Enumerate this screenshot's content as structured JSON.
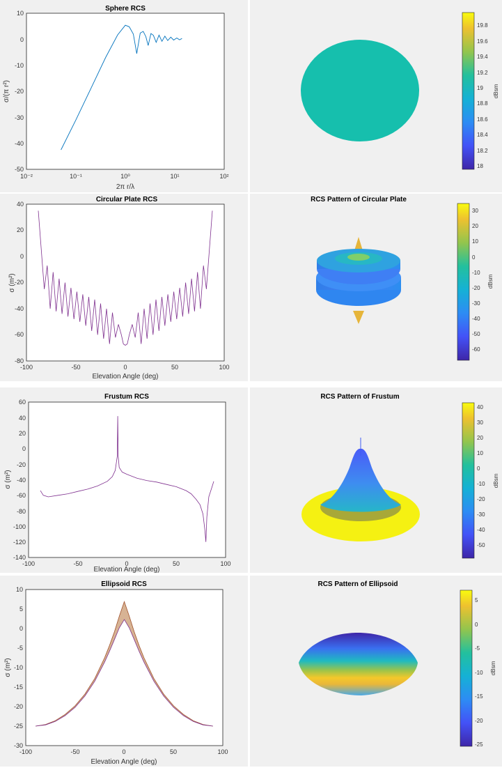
{
  "colors": {
    "background": "#f0f0f0",
    "plot_bg": "#ffffff",
    "blue_line": "#0072bd",
    "purple_line": "#7e2f8e",
    "parula_dark": "#3e26a8",
    "parula_yellow": "#f9fb0e",
    "sphere_fill": "#16bfad"
  },
  "charts": {
    "sphere_rcs": {
      "title": "Sphere RCS",
      "xlabel": "2π r/λ",
      "ylabel": "σ/(π r²)",
      "xticks": [
        "10⁻²",
        "10⁻¹",
        "10⁰",
        "10¹",
        "10²"
      ],
      "yticks": [
        "10",
        "0",
        "-10",
        "-20",
        "-30",
        "-40",
        "-50"
      ]
    },
    "sphere_pattern": {
      "title": "",
      "colorbar_label": "dBsm",
      "colorbar_ticks": [
        "19.8",
        "19.6",
        "19.4",
        "19.2",
        "19",
        "18.8",
        "18.6",
        "18.4",
        "18.2",
        "18"
      ]
    },
    "plate_rcs": {
      "title": "Circular Plate RCS",
      "xlabel": "Elevation Angle (deg)",
      "ylabel": "σ (m²)",
      "xticks": [
        "-100",
        "-50",
        "0",
        "50",
        "100"
      ],
      "yticks": [
        "40",
        "20",
        "0",
        "-20",
        "-40",
        "-60",
        "-80"
      ]
    },
    "plate_pattern": {
      "title": "RCS Pattern of Circular Plate",
      "colorbar_label": "dBsm",
      "colorbar_ticks": [
        "30",
        "20",
        "10",
        "0",
        "-10",
        "-20",
        "-30",
        "-40",
        "-50",
        "-60"
      ]
    },
    "frustum_rcs": {
      "title": "Frustum RCS",
      "xlabel": "Elevation Angle (deg)",
      "ylabel": "σ (m²)",
      "xticks": [
        "-100",
        "-50",
        "0",
        "50",
        "100"
      ],
      "yticks": [
        "60",
        "40",
        "20",
        "0",
        "-20",
        "-40",
        "-60",
        "-80",
        "-100",
        "-120",
        "-140"
      ]
    },
    "frustum_pattern": {
      "title": "RCS Pattern of Frustum",
      "colorbar_label": "dBsm",
      "colorbar_ticks": [
        "40",
        "30",
        "20",
        "10",
        "0",
        "-10",
        "-20",
        "-30",
        "-40",
        "-50"
      ]
    },
    "ellipsoid_rcs": {
      "title": "Ellipsoid RCS",
      "xlabel": "Elevation Angle (deg)",
      "ylabel": "σ (m²)",
      "xticks": [
        "-100",
        "-50",
        "0",
        "50",
        "100"
      ],
      "yticks": [
        "10",
        "5",
        "0",
        "-5",
        "-10",
        "-15",
        "-20",
        "-25",
        "-30"
      ]
    },
    "ellipsoid_pattern": {
      "title": "RCS Pattern of Ellipsoid",
      "colorbar_label": "dBsm",
      "colorbar_ticks": [
        "5",
        "0",
        "-5",
        "-10",
        "-15",
        "-20",
        "-25"
      ]
    }
  },
  "chart_data": [
    {
      "type": "line",
      "title": "Sphere RCS",
      "xlabel": "2π r/λ",
      "ylabel": "σ/(π r²)",
      "x_scale": "log",
      "xlim": [
        0.01,
        100
      ],
      "ylim": [
        -50,
        10
      ],
      "grid": false,
      "series": [
        {
          "x": [
            0.05,
            0.1,
            0.2,
            0.4,
            0.7,
            1.0,
            1.2,
            1.45,
            1.7,
            2.0,
            2.3,
            2.6,
            2.9,
            3.3,
            3.7,
            4.2,
            4.8,
            5.5,
            6.3,
            7.2,
            8.3,
            9.5,
            11,
            12.5,
            14
          ],
          "y": [
            -42.5,
            -31,
            -19,
            -7,
            1.7,
            5.4,
            4.8,
            2.0,
            -5.5,
            2.4,
            3.0,
            1.0,
            -2.4,
            2.2,
            1.5,
            -1.2,
            1.6,
            -0.8,
            1.2,
            -0.5,
            0.8,
            -0.3,
            0.5,
            -0.2,
            0.3
          ]
        }
      ]
    },
    {
      "type": "line",
      "title": "Circular Plate RCS",
      "xlabel": "Elevation Angle (deg)",
      "ylabel": "σ (m²)",
      "xlim": [
        -100,
        100
      ],
      "ylim": [
        -80,
        40
      ],
      "grid": false,
      "series": [
        {
          "x": [
            -88,
            -85,
            -82,
            -79,
            -76,
            -73,
            -70,
            -67,
            -64,
            -61,
            -58,
            -55,
            -52,
            -49,
            -46,
            -43,
            -40,
            -37,
            -34,
            -31,
            -28,
            -25,
            -22,
            -19,
            -16,
            -13,
            -10,
            -7,
            -4,
            -2,
            0,
            2,
            4,
            7,
            10,
            13,
            16,
            19,
            22,
            25,
            28,
            31,
            34,
            37,
            40,
            43,
            46,
            49,
            52,
            55,
            58,
            61,
            64,
            67,
            70,
            73,
            76,
            79,
            82,
            85,
            88
          ],
          "y": [
            35,
            5,
            -25,
            -7,
            -40,
            -12,
            -42,
            -17,
            -44,
            -20,
            -46,
            -24,
            -48,
            -27,
            -50,
            -29,
            -53,
            -31,
            -57,
            -33,
            -60,
            -36,
            -63,
            -40,
            -67,
            -43,
            -62,
            -52,
            -60,
            -67,
            -68,
            -67,
            -60,
            -52,
            -62,
            -43,
            -67,
            -40,
            -63,
            -36,
            -60,
            -33,
            -57,
            -31,
            -53,
            -29,
            -50,
            -27,
            -48,
            -24,
            -46,
            -20,
            -44,
            -17,
            -42,
            -12,
            -40,
            -7,
            -25,
            5,
            35
          ]
        }
      ]
    },
    {
      "type": "line",
      "title": "Frustum RCS",
      "xlabel": "Elevation Angle (deg)",
      "ylabel": "σ (m²)",
      "xlim": [
        -100,
        100
      ],
      "ylim": [
        -140,
        60
      ],
      "grid": false,
      "series": [
        {
          "x": [
            -88,
            -85,
            -80,
            -70,
            -60,
            -50,
            -40,
            -30,
            -20,
            -15,
            -12,
            -10,
            -9.5,
            -9,
            -8,
            -5,
            0,
            10,
            20,
            30,
            40,
            50,
            60,
            65,
            70,
            74,
            77,
            79,
            80,
            81,
            83,
            86,
            88
          ],
          "y": [
            -54,
            -60,
            -62,
            -60,
            -58,
            -55,
            -52,
            -48,
            -42,
            -36,
            -28,
            -10,
            42,
            -10,
            -24,
            -30,
            -33,
            -38,
            -41,
            -43,
            -46,
            -49,
            -54,
            -58,
            -65,
            -72,
            -84,
            -105,
            -120,
            -88,
            -62,
            -50,
            -42
          ]
        }
      ]
    },
    {
      "type": "line",
      "title": "Ellipsoid RCS",
      "xlabel": "Elevation Angle (deg)",
      "ylabel": "σ (m²)",
      "xlim": [
        -100,
        100
      ],
      "ylim": [
        -30,
        10
      ],
      "grid": false,
      "series": [
        {
          "x": [
            -90,
            -80,
            -70,
            -60,
            -50,
            -40,
            -30,
            -20,
            -15,
            -10,
            -5,
            0,
            5,
            10,
            15,
            20,
            30,
            40,
            50,
            60,
            70,
            80,
            90
          ],
          "y": [
            -25,
            -24.6,
            -23.6,
            -22,
            -19.8,
            -16.8,
            -12.8,
            -7.5,
            -4.3,
            -0.8,
            3.2,
            6.9,
            3.2,
            -0.8,
            -4.3,
            -7.5,
            -12.8,
            -16.8,
            -19.8,
            -22,
            -23.6,
            -24.6,
            -25
          ]
        },
        {
          "x": [
            -90,
            -80,
            -70,
            -60,
            -50,
            -40,
            -30,
            -20,
            -15,
            -10,
            -5,
            0,
            5,
            10,
            15,
            20,
            30,
            40,
            50,
            60,
            70,
            80,
            90
          ],
          "y": [
            -25,
            -24.7,
            -23.8,
            -22.3,
            -20.2,
            -17.3,
            -13.5,
            -8.6,
            -5.8,
            -2.8,
            0.2,
            2.3,
            0.2,
            -2.8,
            -5.8,
            -8.6,
            -13.5,
            -17.3,
            -20.2,
            -22.3,
            -23.8,
            -24.7,
            -25
          ]
        }
      ]
    },
    {
      "type": "surface",
      "title": "",
      "colorbar": {
        "label": "dBsm",
        "range": [
          17.95,
          19.95
        ]
      }
    },
    {
      "type": "surface",
      "title": "RCS Pattern of Circular Plate",
      "colorbar": {
        "label": "dBsm",
        "range": [
          -65,
          37
        ]
      }
    },
    {
      "type": "surface",
      "title": "RCS Pattern of Frustum",
      "colorbar": {
        "label": "dBsm",
        "range": [
          -57,
          44
        ]
      }
    },
    {
      "type": "surface",
      "title": "RCS Pattern of Ellipsoid",
      "colorbar": {
        "label": "dBsm",
        "range": [
          -25,
          7.5
        ]
      }
    }
  ]
}
